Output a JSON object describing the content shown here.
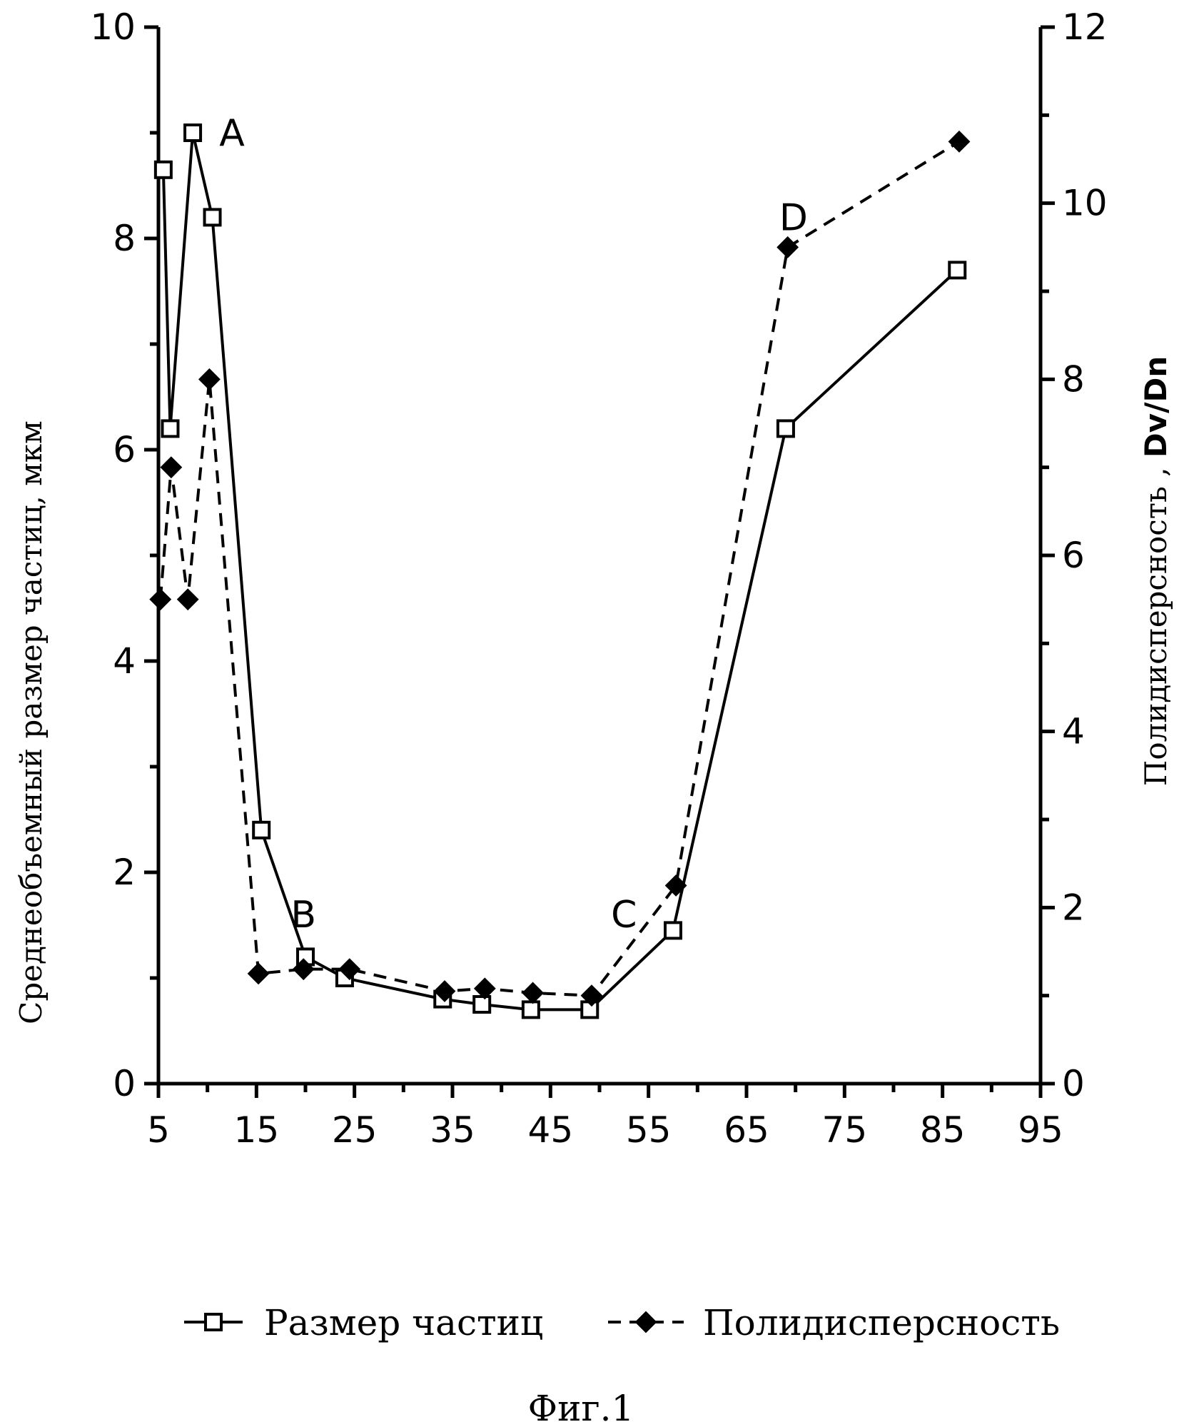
{
  "chart_data": {
    "type": "line",
    "x_ticks": [
      5,
      15,
      25,
      35,
      45,
      55,
      65,
      75,
      85,
      95
    ],
    "xlim": [
      5,
      95
    ],
    "y_left": {
      "label": "Среднеобъемный  размер частиц, мкм",
      "ticks": [
        0,
        2,
        4,
        6,
        8,
        10
      ],
      "lim": [
        0,
        10
      ]
    },
    "y_right": {
      "label_text": "Полидисперсность",
      "label_sep": " , ",
      "label_symbol": "Dv/Dn",
      "ticks": [
        0,
        2,
        4,
        6,
        8,
        10,
        12
      ],
      "lim": [
        0,
        12
      ]
    },
    "series": [
      {
        "name": "Размер частиц",
        "axis": "left",
        "style": "solid-open-square",
        "x": [
          5.5,
          6.2,
          8.5,
          10.5,
          15.5,
          20,
          24,
          34,
          38,
          43,
          49,
          57.5,
          69,
          86.5
        ],
        "y": [
          8.65,
          6.2,
          9.0,
          8.2,
          2.4,
          1.2,
          1.0,
          0.8,
          0.75,
          0.7,
          0.7,
          1.45,
          6.2,
          7.7
        ]
      },
      {
        "name": "Полидисперсность",
        "axis": "right",
        "style": "dashed-filled-diamond",
        "x": [
          5.2,
          6.3,
          8.0,
          10.2,
          15.2,
          19.8,
          24.5,
          34.2,
          38.3,
          43.2,
          49.2,
          57.8,
          69.2,
          86.7
        ],
        "y": [
          5.5,
          7.0,
          5.5,
          8.0,
          1.25,
          1.3,
          1.3,
          1.05,
          1.08,
          1.03,
          1.0,
          2.25,
          9.5,
          10.7
        ]
      }
    ],
    "annotations": [
      {
        "text": "A",
        "x": 12.5,
        "y_left": 9.0
      },
      {
        "text": "B",
        "x": 19.8,
        "y_left": 1.6
      },
      {
        "text": "C",
        "x": 52.5,
        "y_left": 1.6
      },
      {
        "text": "D",
        "x": 69.8,
        "y_left": 8.2
      }
    ],
    "legend": {
      "placement": "bottom",
      "entries": [
        "Размер частиц",
        "Полидисперсность"
      ]
    },
    "caption": "Фиг.1"
  }
}
